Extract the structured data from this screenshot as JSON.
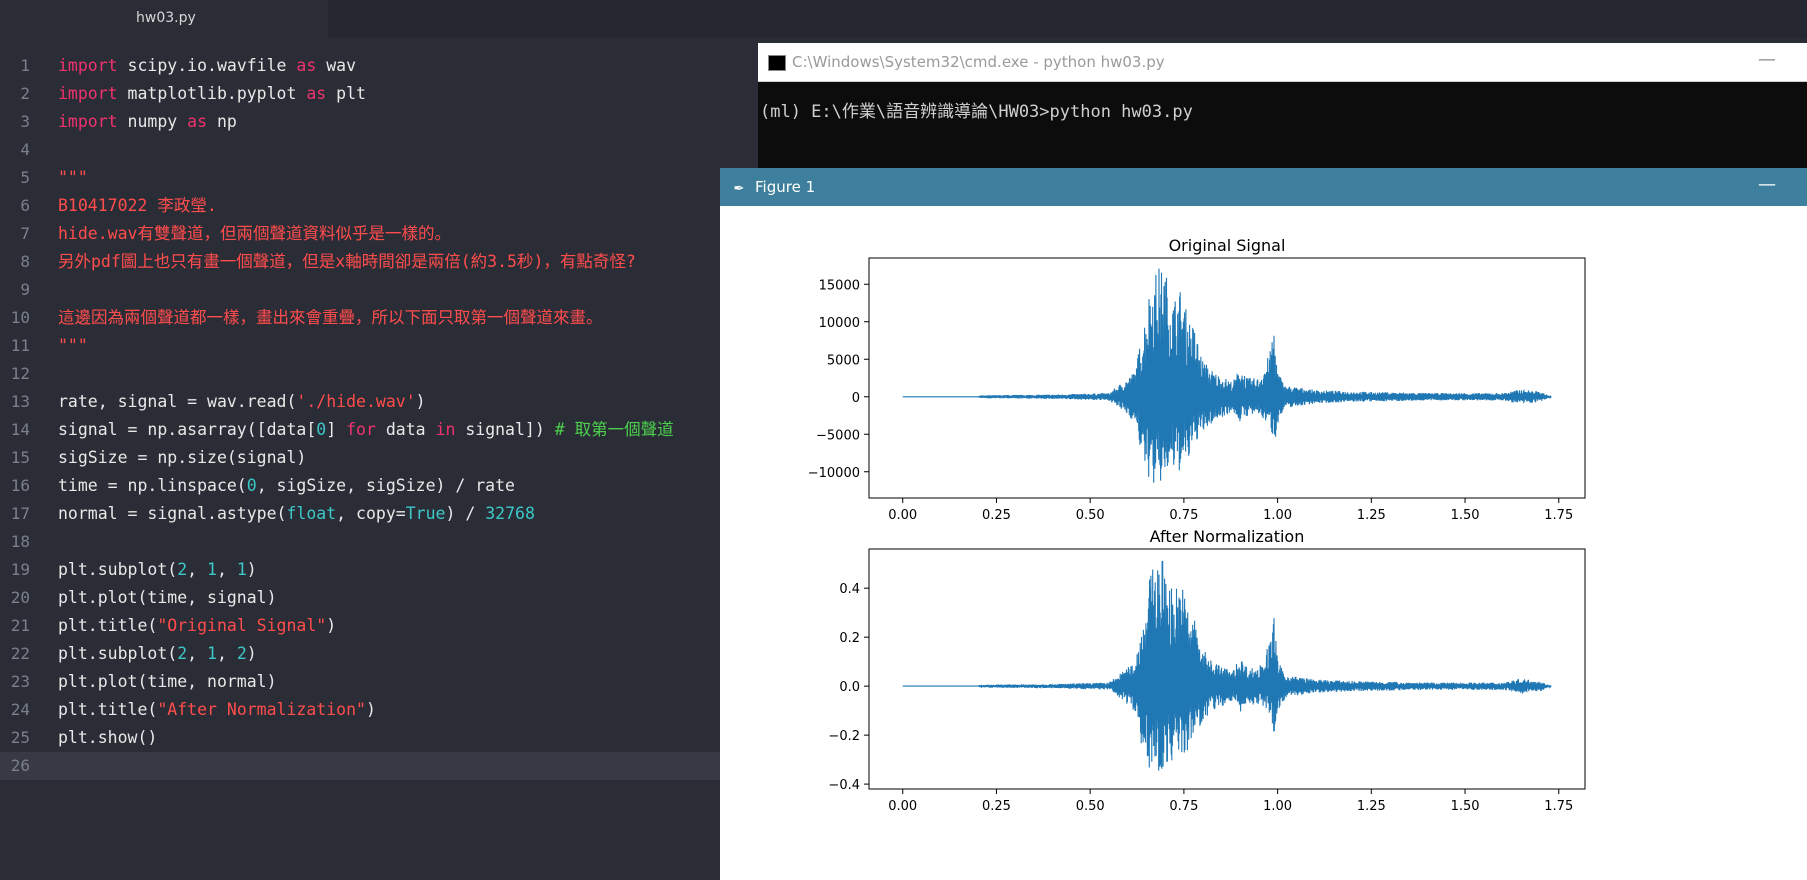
{
  "editor": {
    "tab_label": "hw03.py",
    "active_line": 26,
    "lines": [
      [
        [
          "import",
          "kw"
        ],
        [
          " scipy.io.wavfile ",
          ""
        ],
        [
          "as",
          "kw"
        ],
        [
          " wav",
          ""
        ]
      ],
      [
        [
          "import",
          "kw"
        ],
        [
          " matplotlib.pyplot ",
          ""
        ],
        [
          "as",
          "kw"
        ],
        [
          " plt",
          ""
        ]
      ],
      [
        [
          "import",
          "kw"
        ],
        [
          " numpy ",
          ""
        ],
        [
          "as",
          "kw"
        ],
        [
          " np",
          ""
        ]
      ],
      [],
      [
        [
          "\"\"\"",
          "str"
        ]
      ],
      [
        [
          "B10417022 李政瑩.",
          "str"
        ]
      ],
      [
        [
          "hide.wav有雙聲道，但兩個聲道資料似乎是一樣的。",
          "str"
        ]
      ],
      [
        [
          "另外pdf圖上也只有畫一個聲道，但是x軸時間卻是兩倍(約3.5秒)，有點奇怪?",
          "str"
        ]
      ],
      [],
      [
        [
          "這邊因為兩個聲道都一樣，畫出來會重疊，所以下面只取第一個聲道來畫。",
          "str"
        ]
      ],
      [
        [
          "\"\"\"",
          "str"
        ]
      ],
      [],
      [
        [
          "rate, signal = wav.read(",
          ""
        ],
        [
          "'./hide.wav'",
          "str"
        ],
        [
          ")",
          ""
        ]
      ],
      [
        [
          "signal = np.asarray([data[",
          ""
        ],
        [
          "0",
          "num"
        ],
        [
          "] ",
          ""
        ],
        [
          "for",
          "kw"
        ],
        [
          " data ",
          ""
        ],
        [
          "in",
          "kw"
        ],
        [
          " signal]) ",
          ""
        ],
        [
          "# 取第一個聲道",
          "cmt"
        ]
      ],
      [
        [
          "sigSize = np.size(signal)",
          ""
        ]
      ],
      [
        [
          "time = np.linspace(",
          ""
        ],
        [
          "0",
          "num"
        ],
        [
          ", sigSize, sigSize) / rate",
          ""
        ]
      ],
      [
        [
          "normal = signal.astype(",
          ""
        ],
        [
          "float",
          "num"
        ],
        [
          ", copy=",
          ""
        ],
        [
          "True",
          "num"
        ],
        [
          ") / ",
          ""
        ],
        [
          "32768",
          "num"
        ]
      ],
      [],
      [
        [
          "plt.subplot(",
          ""
        ],
        [
          "2",
          "num"
        ],
        [
          ", ",
          ""
        ],
        [
          "1",
          "num"
        ],
        [
          ", ",
          ""
        ],
        [
          "1",
          "num"
        ],
        [
          ")",
          ""
        ]
      ],
      [
        [
          "plt.plot(time, signal)",
          ""
        ]
      ],
      [
        [
          "plt.title(",
          ""
        ],
        [
          "\"Original Signal\"",
          "str"
        ],
        [
          ")",
          ""
        ]
      ],
      [
        [
          "plt.subplot(",
          ""
        ],
        [
          "2",
          "num"
        ],
        [
          ", ",
          ""
        ],
        [
          "1",
          "num"
        ],
        [
          ", ",
          ""
        ],
        [
          "2",
          "num"
        ],
        [
          ")",
          ""
        ]
      ],
      [
        [
          "plt.plot(time, normal)",
          ""
        ]
      ],
      [
        [
          "plt.title(",
          ""
        ],
        [
          "\"After Normalization\"",
          "str"
        ],
        [
          ")",
          ""
        ]
      ],
      [
        [
          "plt.show()",
          ""
        ]
      ],
      []
    ]
  },
  "cmd": {
    "title": "C:\\Windows\\System32\\cmd.exe - python  hw03.py",
    "minimize": "—",
    "output": "(ml) E:\\作業\\語音辨識導論\\HW03>python hw03.py"
  },
  "figure": {
    "title": "Figure 1",
    "minimize": "—"
  },
  "chart_data": [
    {
      "type": "line",
      "title": "Original Signal",
      "xlim": [
        -0.09,
        1.82
      ],
      "ylim": [
        -13500,
        18500
      ],
      "xticks": [
        "0.00",
        "0.25",
        "0.50",
        "0.75",
        "1.00",
        "1.25",
        "1.50",
        "1.75"
      ],
      "yticks": [
        "15000",
        "10000",
        "5000",
        "0",
        "−5000",
        "−10000"
      ],
      "series": [
        {
          "color": "#1f77b4",
          "envelope_x": [
            0.0,
            0.2,
            0.22,
            0.4,
            0.55,
            0.6,
            0.62,
            0.64,
            0.66,
            0.68,
            0.7,
            0.72,
            0.74,
            0.76,
            0.78,
            0.8,
            0.82,
            0.84,
            0.86,
            0.88,
            0.9,
            0.92,
            0.95,
            0.98,
            0.99,
            1.0,
            1.02,
            1.05,
            1.1,
            1.2,
            1.4,
            1.6,
            1.65,
            1.7,
            1.73
          ],
          "envelope_upper": [
            0,
            0,
            200,
            300,
            500,
            2500,
            3500,
            9000,
            15000,
            17500,
            17000,
            13000,
            14500,
            11000,
            9000,
            5000,
            3800,
            3000,
            2500,
            2000,
            4000,
            2500,
            2500,
            6000,
            10000,
            3500,
            1500,
            1300,
            900,
            700,
            500,
            500,
            1000,
            700,
            0
          ],
          "envelope_lower": [
            0,
            0,
            -200,
            -300,
            -500,
            -2500,
            -3500,
            -9000,
            -11500,
            -12500,
            -10500,
            -10000,
            -10000,
            -9000,
            -6000,
            -5000,
            -3800,
            -3000,
            -2500,
            -2000,
            -3500,
            -2500,
            -2500,
            -4000,
            -6500,
            -3500,
            -1500,
            -1300,
            -900,
            -700,
            -500,
            -500,
            -1000,
            -700,
            0
          ]
        }
      ]
    },
    {
      "type": "line",
      "title": "After Normalization",
      "xlim": [
        -0.09,
        1.82
      ],
      "ylim": [
        -0.42,
        0.56
      ],
      "xticks": [
        "0.00",
        "0.25",
        "0.50",
        "0.75",
        "1.00",
        "1.25",
        "1.50",
        "1.75"
      ],
      "yticks": [
        "0.4",
        "0.2",
        "0.0",
        "−0.2",
        "−0.4"
      ],
      "series": [
        {
          "color": "#1f77b4",
          "envelope_x": [
            0.0,
            0.2,
            0.22,
            0.4,
            0.55,
            0.6,
            0.62,
            0.64,
            0.66,
            0.68,
            0.7,
            0.72,
            0.74,
            0.76,
            0.78,
            0.8,
            0.82,
            0.84,
            0.86,
            0.88,
            0.9,
            0.92,
            0.95,
            0.98,
            0.99,
            1.0,
            1.02,
            1.05,
            1.1,
            1.2,
            1.4,
            1.6,
            1.65,
            1.7,
            1.73
          ],
          "envelope_upper": [
            0,
            0,
            0.006,
            0.009,
            0.015,
            0.076,
            0.107,
            0.275,
            0.458,
            0.534,
            0.519,
            0.397,
            0.443,
            0.336,
            0.275,
            0.153,
            0.116,
            0.092,
            0.076,
            0.061,
            0.122,
            0.076,
            0.076,
            0.183,
            0.305,
            0.107,
            0.046,
            0.04,
            0.027,
            0.021,
            0.015,
            0.015,
            0.031,
            0.021,
            0
          ],
          "envelope_lower": [
            0,
            0,
            -0.006,
            -0.009,
            -0.015,
            -0.076,
            -0.107,
            -0.275,
            -0.351,
            -0.381,
            -0.32,
            -0.305,
            -0.305,
            -0.275,
            -0.183,
            -0.153,
            -0.116,
            -0.092,
            -0.076,
            -0.061,
            -0.107,
            -0.076,
            -0.076,
            -0.122,
            -0.198,
            -0.107,
            -0.046,
            -0.04,
            -0.027,
            -0.021,
            -0.015,
            -0.015,
            -0.031,
            -0.021,
            0
          ]
        }
      ]
    }
  ]
}
